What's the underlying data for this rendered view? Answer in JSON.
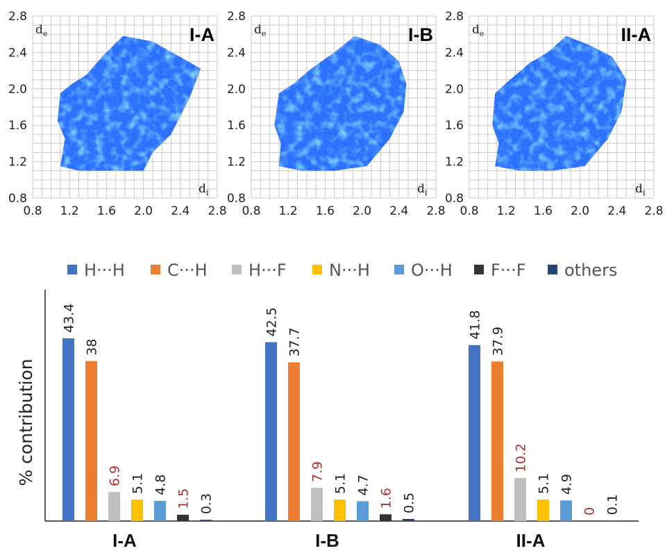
{
  "chart_data": [
    {
      "type": "heatmap",
      "title": "I-A",
      "xlabel": "d",
      "xlabel_sub": "i",
      "ylabel": "d",
      "ylabel_sub": "e",
      "x_ticks": [
        "0.8",
        "1.2",
        "1.6",
        "2.0",
        "2.4",
        "2.8"
      ],
      "y_ticks": [
        "2.8",
        "2.4",
        "2.0",
        "1.6",
        "1.2",
        "0.8"
      ],
      "xlim": [
        0.8,
        2.8
      ],
      "ylim": [
        0.8,
        2.8
      ],
      "grid": true,
      "point_color": "#1a5cff",
      "highlight_color": "#5fe3ff"
    },
    {
      "type": "heatmap",
      "title": "I-B",
      "xlabel": "d",
      "xlabel_sub": "i",
      "ylabel": "d",
      "ylabel_sub": "e",
      "x_ticks": [
        "0.8",
        "1.2",
        "1.6",
        "2.0",
        "2.4",
        "2.8"
      ],
      "y_ticks": [
        "2.8",
        "2.4",
        "2.0",
        "1.6",
        "1.2",
        "0.8"
      ],
      "xlim": [
        0.8,
        2.8
      ],
      "ylim": [
        0.8,
        2.8
      ],
      "grid": true,
      "point_color": "#1a5cff",
      "highlight_color": "#5fe3ff"
    },
    {
      "type": "heatmap",
      "title": "II-A",
      "xlabel": "d",
      "xlabel_sub": "i",
      "ylabel": "d",
      "ylabel_sub": "e",
      "x_ticks": [
        "0.8",
        "1.2",
        "1.6",
        "2.0",
        "2.4",
        "2.8"
      ],
      "y_ticks": [
        "2.8",
        "2.4",
        "2.0",
        "1.6",
        "1.2",
        "0.8"
      ],
      "xlim": [
        0.8,
        2.8
      ],
      "ylim": [
        0.8,
        2.8
      ],
      "grid": true,
      "point_color": "#1a5cff",
      "highlight_color": "#5fe3ff"
    },
    {
      "type": "bar",
      "ylabel": "% contribution",
      "categories": [
        "I-A",
        "I-B",
        "II-A"
      ],
      "ylim": [
        0,
        50
      ],
      "legend_position": "top",
      "series": [
        {
          "name": "H···H",
          "color": "#4472c4",
          "values": [
            43.4,
            42.5,
            41.8
          ],
          "labels": [
            "43.4",
            "42.5",
            "41.8"
          ],
          "label_color": "#222222"
        },
        {
          "name": "C···H",
          "color": "#ed7d31",
          "values": [
            38,
            37.7,
            37.9
          ],
          "labels": [
            "38",
            "37.7",
            "37.9"
          ],
          "label_color": "#222222"
        },
        {
          "name": "H···F",
          "color": "#bfbfbf",
          "values": [
            6.9,
            7.9,
            10.2
          ],
          "labels": [
            "6.9",
            "7.9",
            "10.2"
          ],
          "label_color": "#b03030"
        },
        {
          "name": "N···H",
          "color": "#ffc000",
          "values": [
            5.1,
            5.1,
            5.1
          ],
          "labels": [
            "5.1",
            "5.1",
            "5.1"
          ],
          "label_color": "#222222"
        },
        {
          "name": "O···H",
          "color": "#5b9bd5",
          "values": [
            4.8,
            4.7,
            4.9
          ],
          "labels": [
            "4.8",
            "4.7",
            "4.9"
          ],
          "label_color": "#222222"
        },
        {
          "name": "F···F",
          "color": "#333333",
          "values": [
            1.5,
            1.6,
            0
          ],
          "labels": [
            "1.5",
            "1.6",
            "0"
          ],
          "label_color": "#b03030"
        },
        {
          "name": "others",
          "color": "#264478",
          "values": [
            0.3,
            0.5,
            0.1
          ],
          "labels": [
            "0.3",
            "0.5",
            "0.1"
          ],
          "label_color": "#222222"
        }
      ]
    }
  ]
}
